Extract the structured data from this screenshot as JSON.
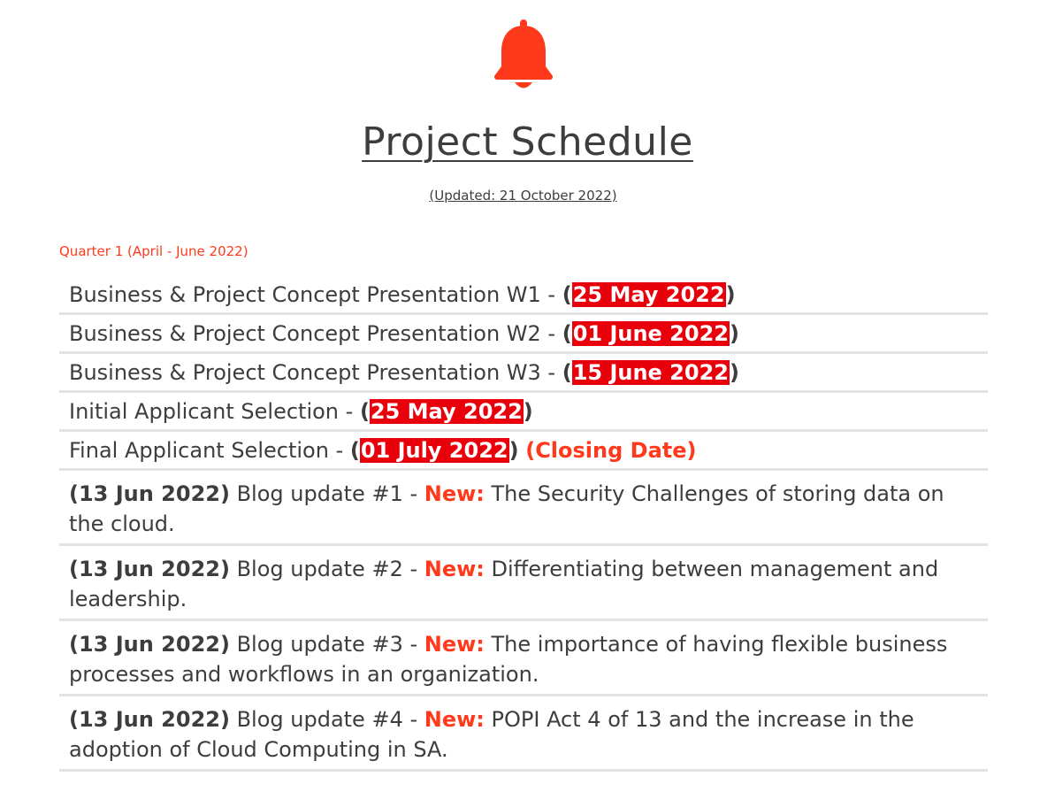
{
  "header": {
    "icon": "bell-icon",
    "title": "Project Schedule",
    "updated": "(Updated: 21 October 2022)"
  },
  "quarter_label": "Quarter 1 (April - June 2022)",
  "colors": {
    "accent": "#ff3a1c",
    "highlight": "#e8000a"
  },
  "items": [
    {
      "text": "Business & Project Concept Presentation W1 - ",
      "open": "(",
      "date": "25 May 2022",
      "close": ")"
    },
    {
      "text": "Business & Project Concept Presentation W2 - ",
      "open": "(",
      "date": "01 June 2022",
      "close": ")"
    },
    {
      "text": "Business & Project Concept Presentation W3 - ",
      "open": "(",
      "date": "15 June 2022",
      "close": ")"
    },
    {
      "text": "Initial Applicant Selection - ",
      "open": "(",
      "date": "25 May 2022",
      "close": ")"
    },
    {
      "text": "Final Applicant Selection - ",
      "open": "(",
      "date": "01 July 2022",
      "close": ")",
      "note": "(Closing Date)"
    }
  ],
  "blogs": [
    {
      "date": "(13 Jun 2022)",
      "text": " Blog update #1 - ",
      "new": "New:",
      "title": " The Security Challenges of storing data on the cloud."
    },
    {
      "date": "(13 Jun 2022)",
      "text": " Blog update #2 - ",
      "new": "New:",
      "title": " Differentiating between management and leadership."
    },
    {
      "date": "(13 Jun 2022)",
      "text": " Blog update #3 - ",
      "new": "New:",
      "title": " The importance of having flexible business processes and workflows in an organization."
    },
    {
      "date": "(13 Jun 2022)",
      "text": " Blog update #4 - ",
      "new": "New:",
      "title": " POPI Act 4 of 13 and the increase in the adoption of Cloud Computing in SA."
    }
  ]
}
